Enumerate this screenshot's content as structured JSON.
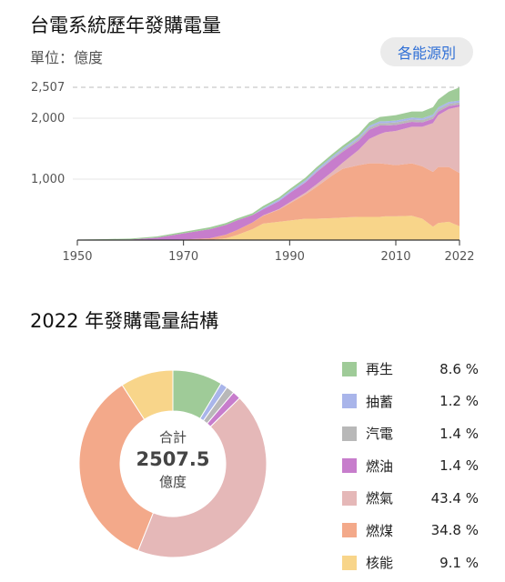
{
  "header": {
    "title": "台電系統歷年發購電量",
    "unit": "單位：億度",
    "source_button": "各能源別"
  },
  "section2_title": "2022 年發購電量結構",
  "donut": {
    "center_label": "合計",
    "center_value": "2507.5",
    "center_unit": "億度"
  },
  "chart_data": [
    {
      "type": "area",
      "stacked": true,
      "x_ticks": [
        "1950",
        "1970",
        "1990",
        "2010",
        "2022"
      ],
      "y_ticks": [
        "1,000",
        "2,000",
        "2,507"
      ],
      "xlim": [
        1950,
        2022
      ],
      "ylim": [
        0,
        2507
      ],
      "reference_line": 2507,
      "x": [
        1950,
        1955,
        1960,
        1965,
        1970,
        1975,
        1978,
        1980,
        1983,
        1985,
        1988,
        1990,
        1993,
        1995,
        1998,
        2000,
        2003,
        2005,
        2007,
        2008,
        2010,
        2013,
        2015,
        2017,
        2018,
        2020,
        2022
      ],
      "series": [
        {
          "name": "核能",
          "color": "#f8d58a",
          "values": [
            0,
            0,
            0,
            0,
            0,
            0,
            30,
            80,
            180,
            270,
            300,
            320,
            350,
            350,
            360,
            370,
            380,
            380,
            380,
            390,
            390,
            400,
            350,
            220,
            280,
            300,
            228
          ]
        },
        {
          "name": "燃煤",
          "color": "#f3a98a",
          "values": [
            0,
            0,
            0,
            0,
            10,
            30,
            60,
            80,
            110,
            130,
            200,
            280,
            400,
            520,
            700,
            800,
            850,
            880,
            880,
            860,
            840,
            860,
            860,
            900,
            920,
            900,
            873
          ]
        },
        {
          "name": "燃氣",
          "color": "#e5b8b8",
          "values": [
            0,
            0,
            0,
            0,
            0,
            0,
            0,
            0,
            0,
            5,
            10,
            20,
            30,
            40,
            60,
            100,
            250,
            400,
            480,
            520,
            560,
            600,
            650,
            800,
            850,
            950,
            1088
          ]
        },
        {
          "name": "燃油",
          "color": "#c77dcc",
          "values": [
            0,
            5,
            10,
            40,
            100,
            150,
            160,
            160,
            120,
            100,
            130,
            150,
            170,
            200,
            200,
            180,
            150,
            150,
            140,
            110,
            100,
            80,
            70,
            70,
            60,
            50,
            35
          ]
        },
        {
          "name": "汽電",
          "color": "#b8b8b8",
          "values": [
            0,
            0,
            0,
            0,
            0,
            0,
            0,
            0,
            0,
            0,
            0,
            0,
            5,
            10,
            20,
            25,
            30,
            35,
            40,
            40,
            40,
            40,
            40,
            40,
            38,
            37,
            35
          ]
        },
        {
          "name": "抽蓄",
          "color": "#a9b5ea",
          "values": [
            0,
            0,
            0,
            0,
            0,
            0,
            0,
            0,
            0,
            20,
            25,
            30,
            30,
            30,
            30,
            30,
            30,
            30,
            30,
            30,
            30,
            30,
            30,
            30,
            30,
            30,
            30
          ]
        },
        {
          "name": "再生",
          "color": "#9fcb98",
          "values": [
            8,
            10,
            15,
            20,
            25,
            30,
            30,
            30,
            30,
            35,
            35,
            35,
            40,
            40,
            40,
            45,
            50,
            60,
            70,
            80,
            90,
            100,
            110,
            120,
            130,
            170,
            216
          ]
        }
      ]
    },
    {
      "type": "pie",
      "donut": true,
      "total": 2507.5,
      "slices": [
        {
          "name": "再生",
          "value": 8.6,
          "label": "8.6 %",
          "color": "#9fcb98"
        },
        {
          "name": "抽蓄",
          "value": 1.2,
          "label": "1.2 %",
          "color": "#a9b5ea"
        },
        {
          "name": "汽電",
          "value": 1.4,
          "label": "1.4 %",
          "color": "#b8b8b8"
        },
        {
          "name": "燃油",
          "value": 1.4,
          "label": "1.4 %",
          "color": "#c77dcc"
        },
        {
          "name": "燃氣",
          "value": 43.4,
          "label": "43.4 %",
          "color": "#e5b8b8"
        },
        {
          "name": "燃煤",
          "value": 34.8,
          "label": "34.8 %",
          "color": "#f3a98a"
        },
        {
          "name": "核能",
          "value": 9.1,
          "label": "9.1 %",
          "color": "#f8d58a"
        }
      ]
    }
  ]
}
